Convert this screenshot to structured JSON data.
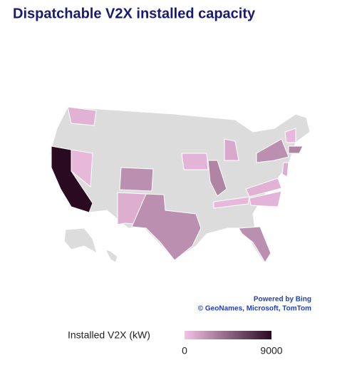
{
  "chart_data": {
    "type": "choropleth",
    "title": "Dispatchable V2X installed capacity",
    "values": [
      800,
      9000,
      500,
      2500,
      1000,
      2500,
      700,
      3000,
      1200,
      500,
      700,
      800,
      2500,
      2500,
      1000,
      500,
      3000
    ],
    "color_low": "#f3c2e6",
    "color_high": "#2a0a21",
    "base_color": "#dcdcdc",
    "legend": {
      "title": "Installed V2X (kW)",
      "min": 0,
      "max": 9000
    },
    "attribution": {
      "provider": "Powered by Bing",
      "sources": "© GeoNames, Microsoft, TomTom"
    }
  }
}
